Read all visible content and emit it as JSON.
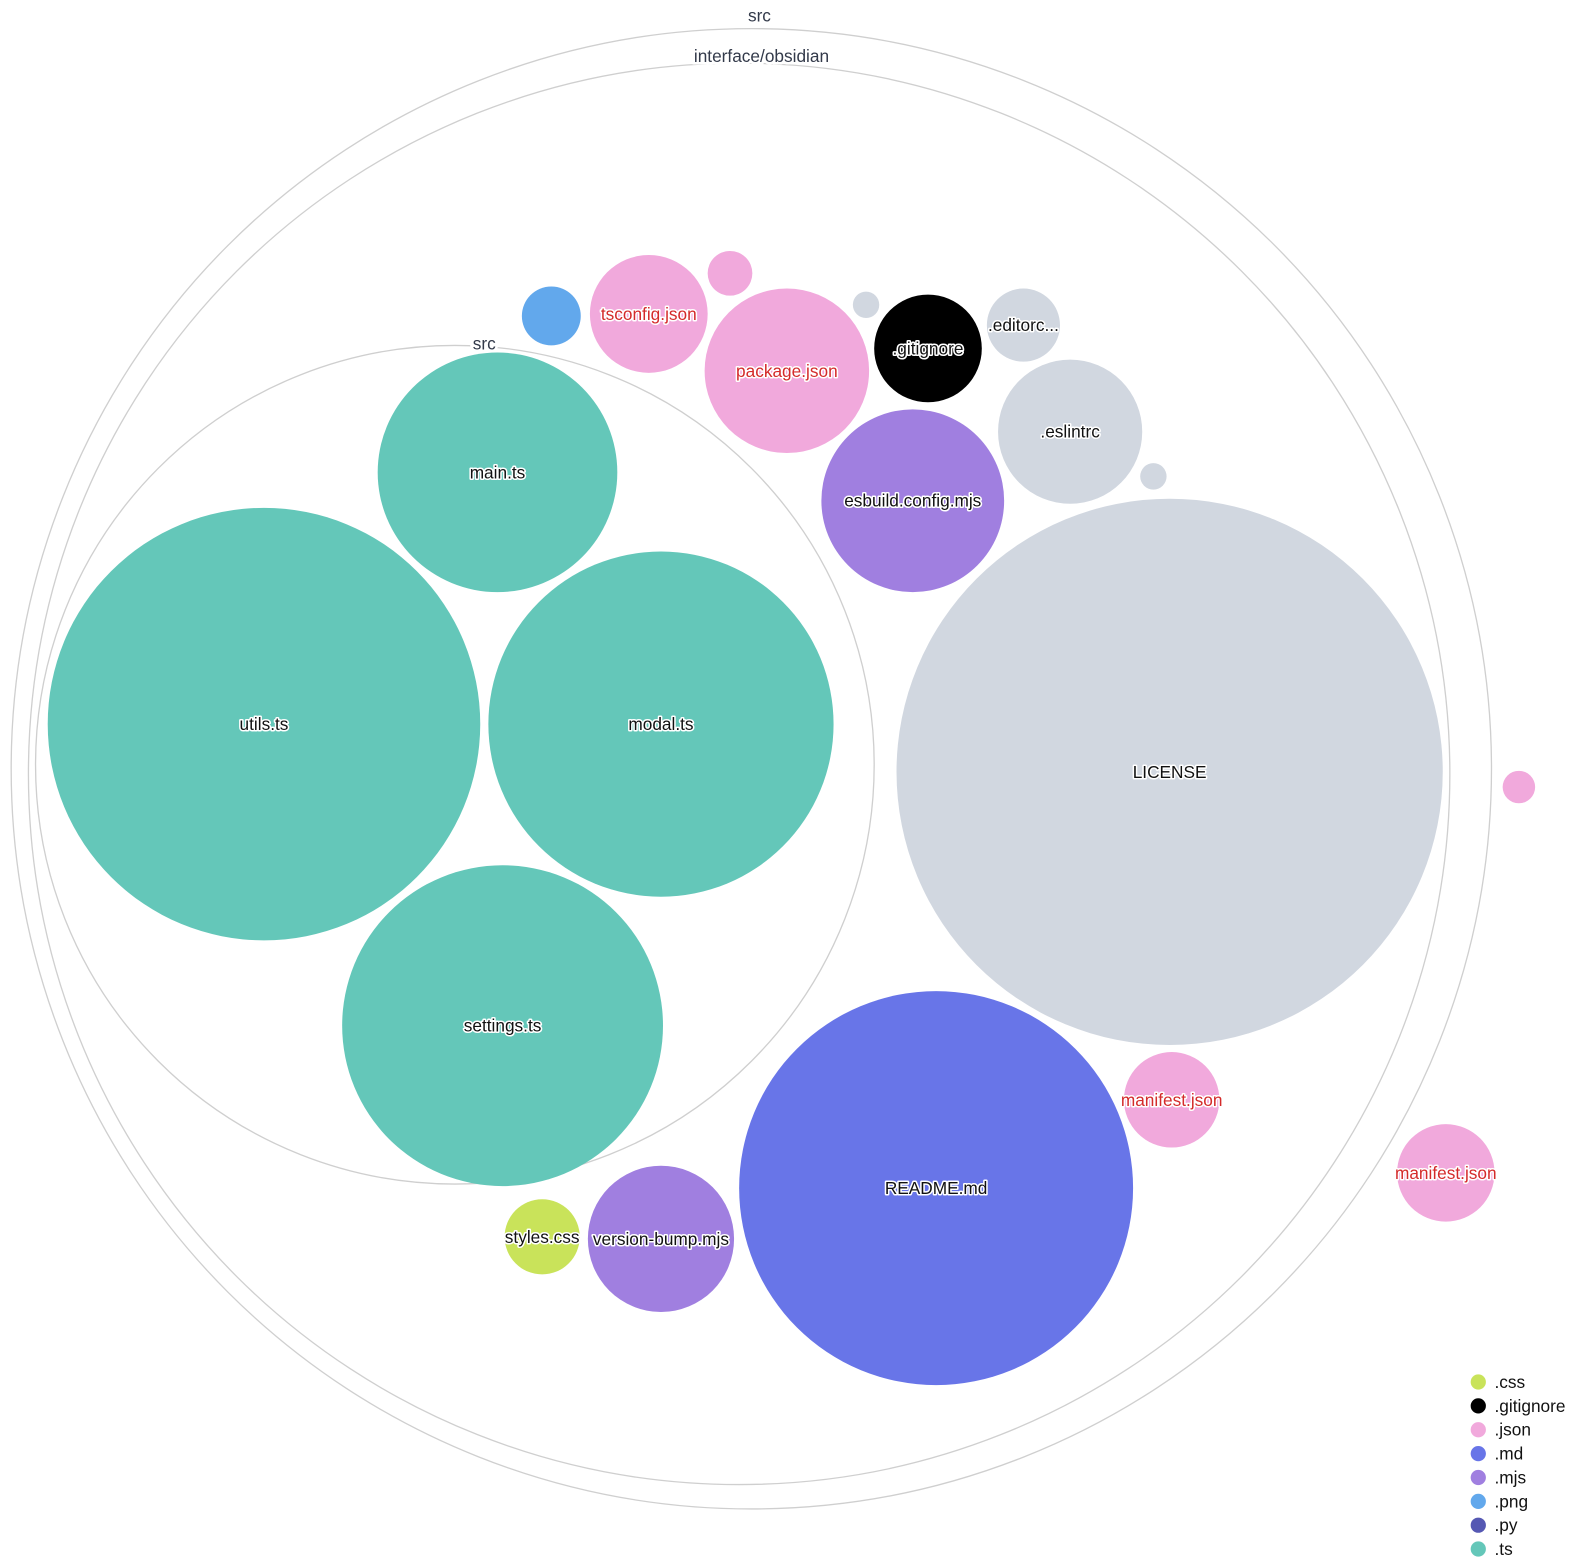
{
  "groups": [
    {
      "label": "src"
    },
    {
      "label": "interface/obsidian"
    },
    {
      "label": "src"
    }
  ],
  "files": [
    {
      "name": "main.ts",
      "ext": ".ts"
    },
    {
      "name": "utils.ts",
      "ext": ".ts"
    },
    {
      "name": "modal.ts",
      "ext": ".ts"
    },
    {
      "name": "settings.ts",
      "ext": ".ts"
    },
    {
      "name": "LICENSE",
      "ext": ""
    },
    {
      "name": "README.md",
      "ext": ".md"
    },
    {
      "name": "manifest.json",
      "ext": ".json"
    },
    {
      "name": "manifest.json",
      "ext": ".json"
    },
    {
      "name": "version-bump.mjs",
      "ext": ".mjs"
    },
    {
      "name": "styles.css",
      "ext": ".css"
    },
    {
      "name": "esbuild.config.mjs",
      "ext": ".mjs"
    },
    {
      "name": ".eslintrc",
      "ext": ""
    },
    {
      "name": "",
      "ext": ""
    },
    {
      "name": ".editorc...",
      "ext": ""
    },
    {
      "name": ".gitignore",
      "ext": ".gitignore"
    },
    {
      "name": "",
      "ext": ""
    },
    {
      "name": "package.json",
      "ext": ".json"
    },
    {
      "name": "",
      "ext": ".json"
    },
    {
      "name": "tsconfig.json",
      "ext": ".json"
    },
    {
      "name": "",
      "ext": ".png"
    },
    {
      "name": "",
      "ext": ".json"
    }
  ],
  "colors": {
    ".css": "#c9e35a",
    ".gitignore": "#000000",
    ".json": "#f1a9dc",
    ".md": "#6875e8",
    ".mjs": "#a07fe0",
    ".png": "#62a8ec",
    ".py": "#5558b3",
    ".ts": "#64c7b9",
    "other": "#d1d7e0",
    "json_label": "#d42a2a",
    "label": "#111111"
  },
  "legend": [
    {
      "label": ".css"
    },
    {
      "label": ".gitignore"
    },
    {
      "label": ".json"
    },
    {
      "label": ".md"
    },
    {
      "label": ".mjs"
    },
    {
      "label": ".png"
    },
    {
      "label": ".py"
    },
    {
      "label": ".ts"
    }
  ]
}
